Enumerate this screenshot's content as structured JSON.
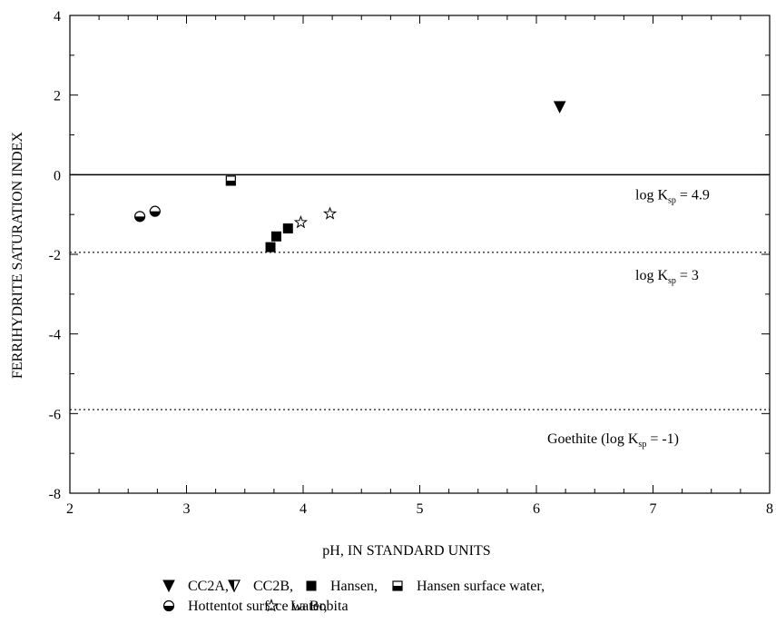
{
  "chart_data": {
    "type": "scatter",
    "xlabel": "pH, IN STANDARD UNITS",
    "ylabel": "FERRIHYDRITE SATURATION INDEX",
    "xlim": [
      2,
      8
    ],
    "ylim": [
      -8,
      4
    ],
    "xticks": [
      "2",
      "3",
      "4",
      "5",
      "6",
      "7",
      "8"
    ],
    "yticks": [
      "-8",
      "-6",
      "-4",
      "-2",
      "0",
      "2",
      "4"
    ],
    "grid": false,
    "reference_lines": [
      {
        "y": 0,
        "style": "solid",
        "label_main": "log K",
        "label_sub": "sp",
        "label_tail": " = 4.9"
      },
      {
        "y": -1.95,
        "style": "dotted",
        "label_main": "log K",
        "label_sub": "sp",
        "label_tail": " = 3"
      },
      {
        "y": -5.9,
        "style": "dotted",
        "label_main": "Goethite (log K",
        "label_sub": "sp",
        "label_tail": " = -1)"
      }
    ],
    "series": [
      {
        "name": "CC2A",
        "marker": "triangle-down-filled",
        "points": [
          {
            "x": 6.2,
            "y": 1.7
          }
        ]
      },
      {
        "name": "CC2B",
        "marker": "triangle-down-half",
        "points": []
      },
      {
        "name": "Hansen",
        "marker": "square-filled",
        "points": [
          {
            "x": 3.72,
            "y": -1.82
          },
          {
            "x": 3.77,
            "y": -1.55
          },
          {
            "x": 3.87,
            "y": -1.35
          }
        ]
      },
      {
        "name": "Hansen surface water",
        "marker": "square-half",
        "points": [
          {
            "x": 3.38,
            "y": -0.15
          }
        ]
      },
      {
        "name": "Hottentot surface water",
        "marker": "circle-half",
        "points": [
          {
            "x": 2.6,
            "y": -1.05
          },
          {
            "x": 2.73,
            "y": -0.92
          }
        ]
      },
      {
        "name": "La Bobita",
        "marker": "star-open",
        "points": [
          {
            "x": 3.98,
            "y": -1.2
          },
          {
            "x": 4.23,
            "y": -0.98
          }
        ]
      }
    ],
    "legend": {
      "placement": "bottom",
      "rows": [
        [
          {
            "series": 0,
            "text": "CC2A,"
          },
          {
            "series": 1,
            "text": "CC2B,"
          },
          {
            "series": 2,
            "text": "Hansen,"
          },
          {
            "series": 3,
            "text": "Hansen surface water,"
          }
        ],
        [
          {
            "series": 4,
            "text": "Hottentot surface water,"
          },
          {
            "series": 5,
            "text": "La Bobita"
          }
        ]
      ]
    }
  }
}
